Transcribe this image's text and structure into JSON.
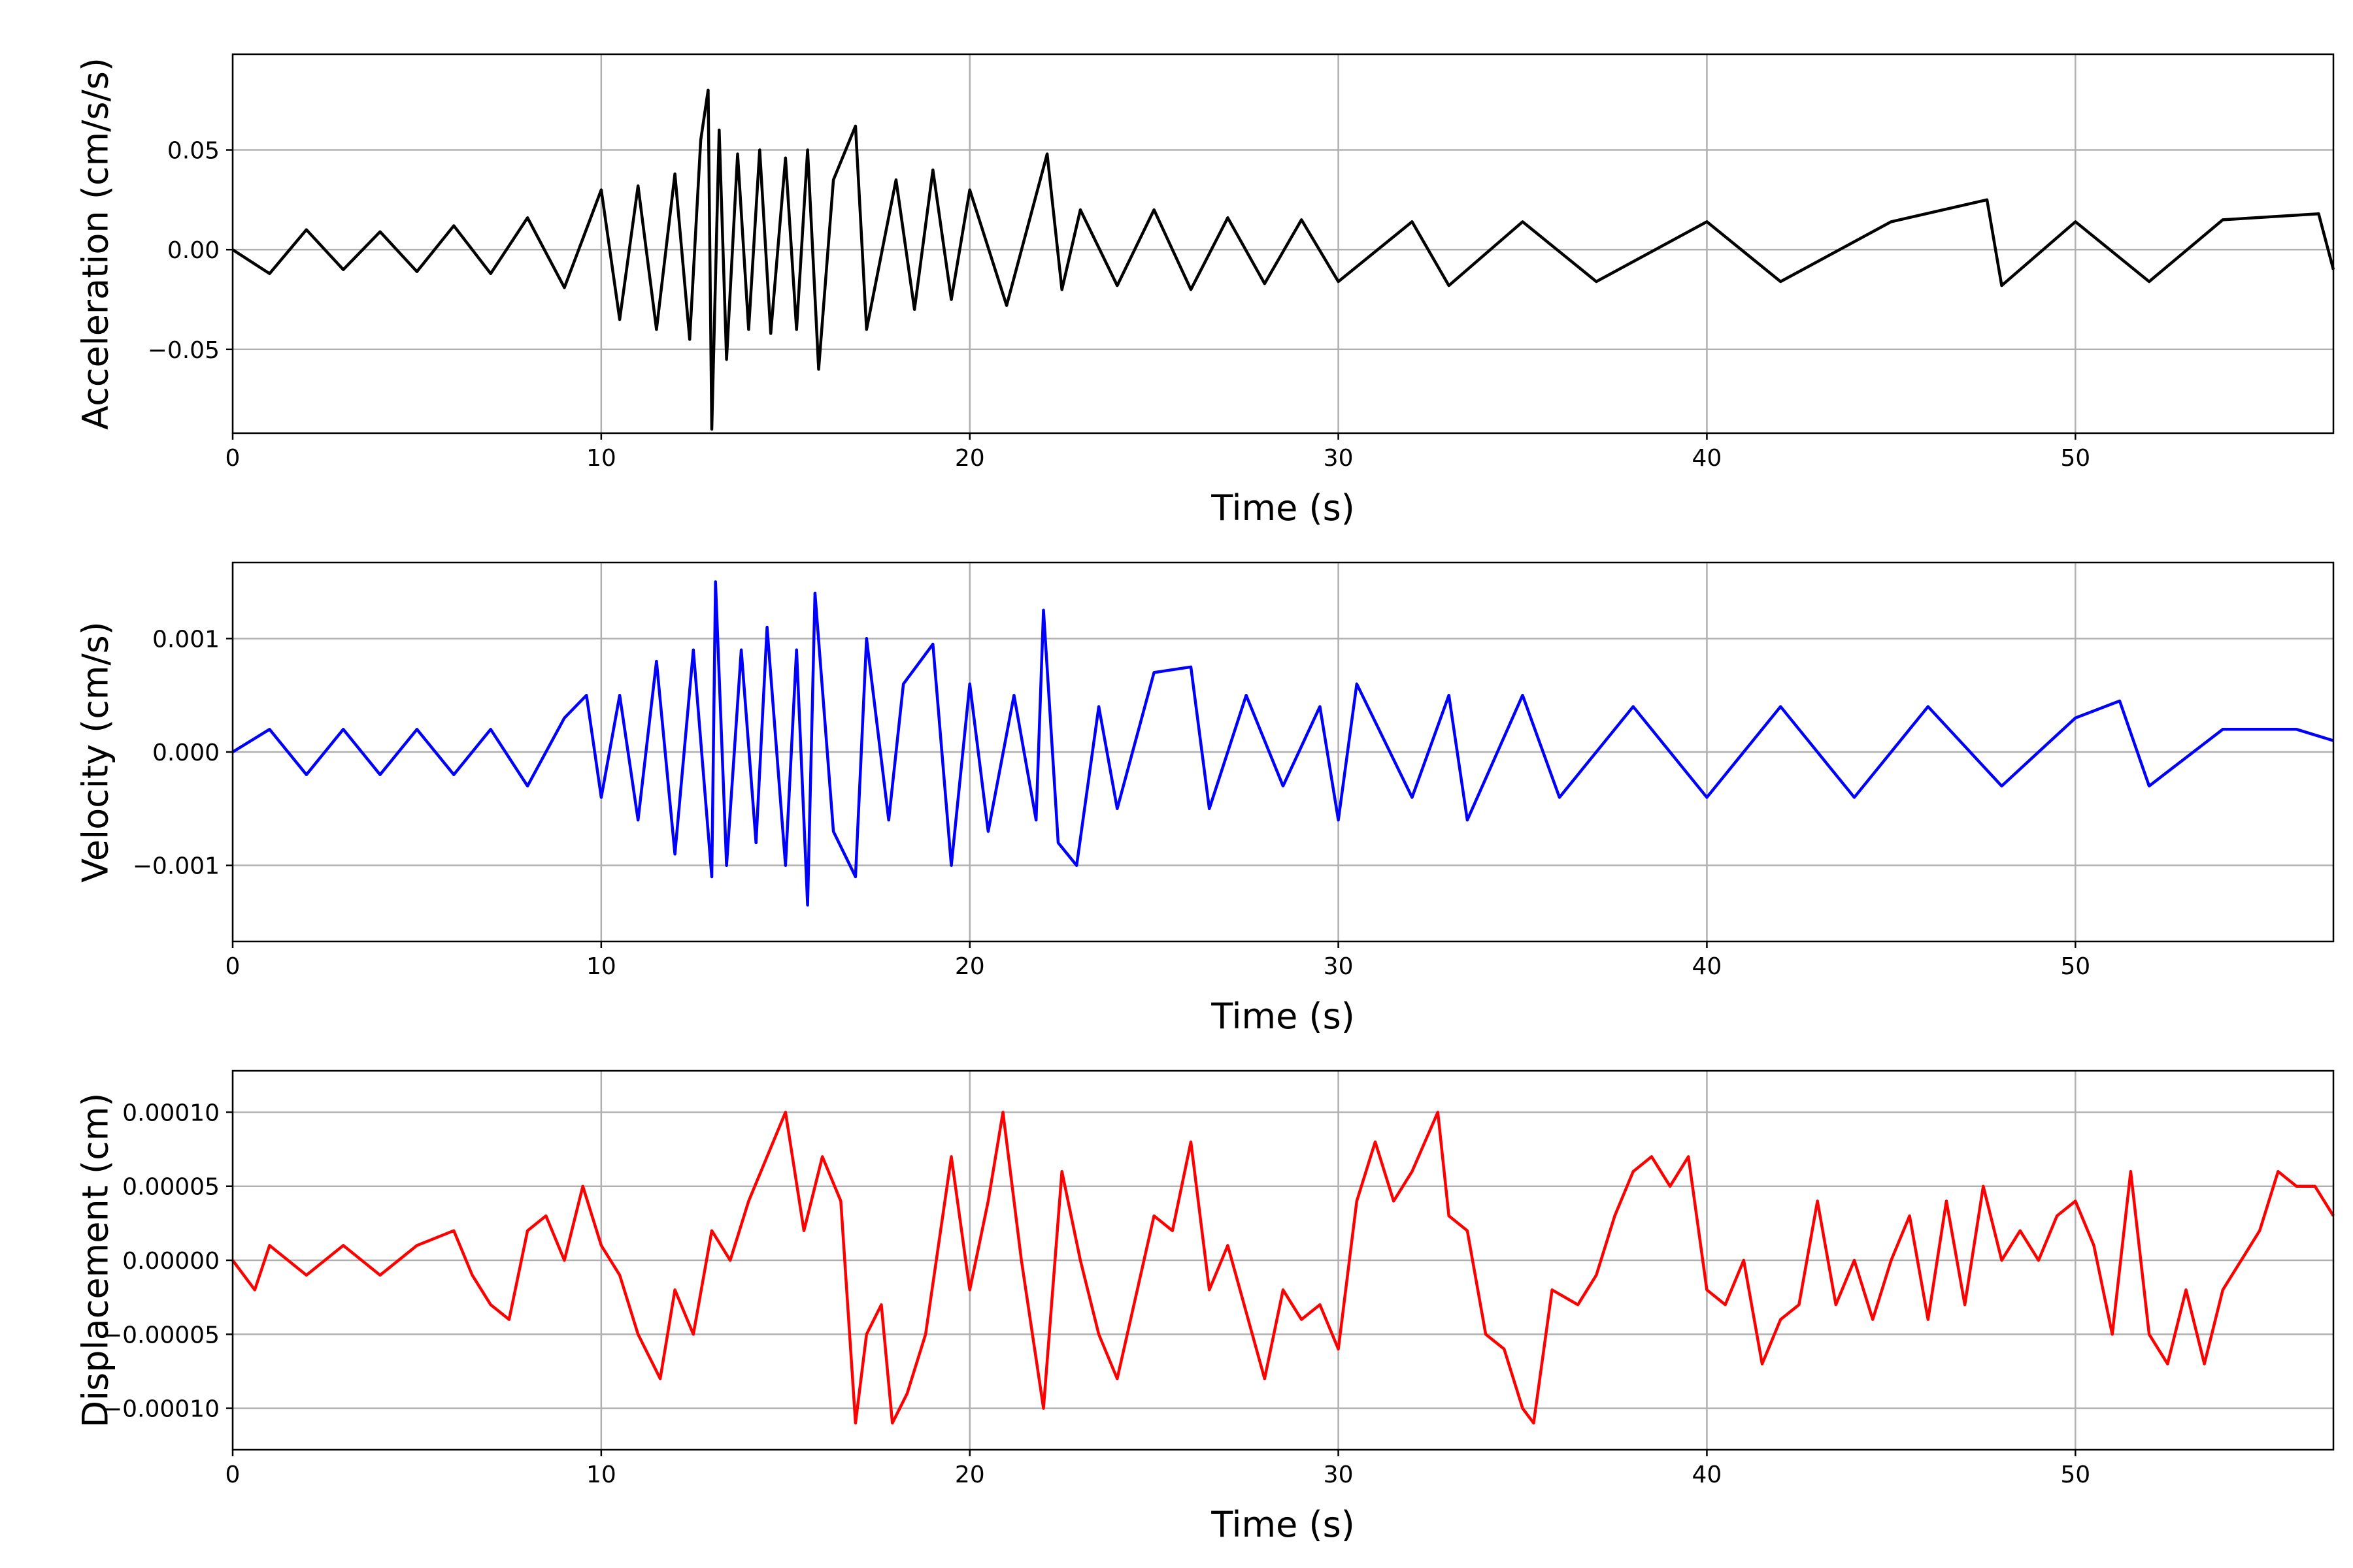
{
  "chart_data": [
    {
      "type": "line",
      "title": "",
      "xlabel": "Time (s)",
      "ylabel": "Acceleration (cm/s/s)",
      "xlim": [
        0,
        57
      ],
      "ylim": [
        -0.092,
        0.098
      ],
      "xticks": [
        0,
        10,
        20,
        30,
        40,
        50
      ],
      "xtick_labels": [
        "0",
        "10",
        "20",
        "30",
        "40",
        "50"
      ],
      "yticks": [
        -0.05,
        0.0,
        0.05
      ],
      "ytick_labels": [
        "−0.05",
        "0.00",
        "0.05"
      ],
      "grid": true,
      "color": "#000000",
      "series": [
        {
          "values": [
            [
              0.0,
              0.0
            ],
            [
              1.0,
              -0.012
            ],
            [
              2.0,
              0.01
            ],
            [
              3.0,
              -0.01
            ],
            [
              4.0,
              0.009
            ],
            [
              5.0,
              -0.011
            ],
            [
              6.0,
              0.012
            ],
            [
              7.0,
              -0.012
            ],
            [
              8.0,
              0.016
            ],
            [
              9.0,
              -0.019
            ],
            [
              10.0,
              0.03
            ],
            [
              10.5,
              -0.035
            ],
            [
              11.0,
              0.032
            ],
            [
              11.5,
              -0.04
            ],
            [
              12.0,
              0.038
            ],
            [
              12.4,
              -0.045
            ],
            [
              12.7,
              0.055
            ],
            [
              12.9,
              0.08
            ],
            [
              13.0,
              -0.09
            ],
            [
              13.2,
              0.06
            ],
            [
              13.4,
              -0.055
            ],
            [
              13.7,
              0.048
            ],
            [
              14.0,
              -0.04
            ],
            [
              14.3,
              0.05
            ],
            [
              14.6,
              -0.042
            ],
            [
              15.0,
              0.046
            ],
            [
              15.3,
              -0.04
            ],
            [
              15.6,
              0.05
            ],
            [
              15.9,
              -0.06
            ],
            [
              16.3,
              0.035
            ],
            [
              16.9,
              0.062
            ],
            [
              17.2,
              -0.04
            ],
            [
              18.0,
              0.035
            ],
            [
              18.5,
              -0.03
            ],
            [
              19.0,
              0.04
            ],
            [
              19.5,
              -0.025
            ],
            [
              20.0,
              0.03
            ],
            [
              21.0,
              -0.028
            ],
            [
              22.1,
              0.048
            ],
            [
              22.5,
              -0.02
            ],
            [
              23.0,
              0.02
            ],
            [
              24.0,
              -0.018
            ],
            [
              25.0,
              0.02
            ],
            [
              26.0,
              -0.02
            ],
            [
              27.0,
              0.016
            ],
            [
              28.0,
              -0.017
            ],
            [
              29.0,
              0.015
            ],
            [
              30.0,
              -0.016
            ],
            [
              32.0,
              0.014
            ],
            [
              33.0,
              -0.018
            ],
            [
              35.0,
              0.014
            ],
            [
              37.0,
              -0.016
            ],
            [
              40.0,
              0.014
            ],
            [
              42.0,
              -0.016
            ],
            [
              45.0,
              0.014
            ],
            [
              47.6,
              0.025
            ],
            [
              48.0,
              -0.018
            ],
            [
              50.0,
              0.014
            ],
            [
              52.0,
              -0.016
            ],
            [
              54.0,
              0.015
            ],
            [
              56.6,
              0.018
            ],
            [
              57.0,
              -0.01
            ]
          ]
        }
      ]
    },
    {
      "type": "line",
      "title": "",
      "xlabel": "Time (s)",
      "ylabel": "Velocity (cm/s)",
      "xlim": [
        0,
        57
      ],
      "ylim": [
        -0.00167,
        0.00167
      ],
      "xticks": [
        0,
        10,
        20,
        30,
        40,
        50
      ],
      "xtick_labels": [
        "0",
        "10",
        "20",
        "30",
        "40",
        "50"
      ],
      "yticks": [
        -0.001,
        0.0,
        0.001
      ],
      "ytick_labels": [
        "−0.001",
        "0.000",
        "0.001"
      ],
      "grid": true,
      "color": "#0000ff",
      "series": [
        {
          "values": [
            [
              0.0,
              0.0
            ],
            [
              1.0,
              0.0002
            ],
            [
              2.0,
              -0.0002
            ],
            [
              3.0,
              0.0002
            ],
            [
              4.0,
              -0.0002
            ],
            [
              5.0,
              0.0002
            ],
            [
              6.0,
              -0.0002
            ],
            [
              7.0,
              0.0002
            ],
            [
              8.0,
              -0.0003
            ],
            [
              9.0,
              0.0003
            ],
            [
              9.6,
              0.0005
            ],
            [
              10.0,
              -0.0004
            ],
            [
              10.5,
              0.0005
            ],
            [
              11.0,
              -0.0006
            ],
            [
              11.5,
              0.0008
            ],
            [
              12.0,
              -0.0009
            ],
            [
              12.5,
              0.0009
            ],
            [
              13.0,
              -0.0011
            ],
            [
              13.1,
              0.0015
            ],
            [
              13.4,
              -0.001
            ],
            [
              13.8,
              0.0009
            ],
            [
              14.2,
              -0.0008
            ],
            [
              14.5,
              0.0011
            ],
            [
              15.0,
              -0.001
            ],
            [
              15.3,
              0.0009
            ],
            [
              15.6,
              -0.00135
            ],
            [
              15.8,
              0.0014
            ],
            [
              16.3,
              -0.0007
            ],
            [
              16.9,
              -0.0011
            ],
            [
              17.2,
              0.001
            ],
            [
              17.8,
              -0.0006
            ],
            [
              18.2,
              0.0006
            ],
            [
              19.0,
              0.00095
            ],
            [
              19.5,
              -0.001
            ],
            [
              20.0,
              0.0006
            ],
            [
              20.5,
              -0.0007
            ],
            [
              21.2,
              0.0005
            ],
            [
              21.8,
              -0.0006
            ],
            [
              22.0,
              0.00125
            ],
            [
              22.4,
              -0.0008
            ],
            [
              22.9,
              -0.001
            ],
            [
              23.5,
              0.0004
            ],
            [
              24.0,
              -0.0005
            ],
            [
              25.0,
              0.0007
            ],
            [
              26.0,
              0.00075
            ],
            [
              26.5,
              -0.0005
            ],
            [
              27.5,
              0.0005
            ],
            [
              28.5,
              -0.0003
            ],
            [
              29.5,
              0.0004
            ],
            [
              30.0,
              -0.0006
            ],
            [
              30.5,
              0.0006
            ],
            [
              32.0,
              -0.0004
            ],
            [
              33.0,
              0.0005
            ],
            [
              33.5,
              -0.0006
            ],
            [
              35.0,
              0.0005
            ],
            [
              36.0,
              -0.0004
            ],
            [
              38.0,
              0.0004
            ],
            [
              40.0,
              -0.0004
            ],
            [
              42.0,
              0.0004
            ],
            [
              44.0,
              -0.0004
            ],
            [
              46.0,
              0.0004
            ],
            [
              48.0,
              -0.0003
            ],
            [
              50.0,
              0.0003
            ],
            [
              51.2,
              0.00045
            ],
            [
              52.0,
              -0.0003
            ],
            [
              54.0,
              0.0002
            ],
            [
              56.0,
              0.0002
            ],
            [
              57.0,
              0.0001
            ]
          ]
        }
      ]
    },
    {
      "type": "line",
      "title": "",
      "xlabel": "Time (s)",
      "ylabel": "Displacement (cm)",
      "xlim": [
        0,
        57
      ],
      "ylim": [
        -0.000128,
        0.000128
      ],
      "xticks": [
        0,
        10,
        20,
        30,
        40,
        50
      ],
      "xtick_labels": [
        "0",
        "10",
        "20",
        "30",
        "40",
        "50"
      ],
      "yticks": [
        -0.0001,
        -5e-05,
        0.0,
        5e-05,
        0.0001
      ],
      "ytick_labels": [
        "−0.00010",
        "−0.00005",
        "0.00000",
        "0.00005",
        "0.00010"
      ],
      "grid": true,
      "color": "#ff0000",
      "series": [
        {
          "values": [
            [
              0.0,
              0.0
            ],
            [
              0.6,
              -2e-05
            ],
            [
              1.0,
              1e-05
            ],
            [
              2.0,
              -1e-05
            ],
            [
              3.0,
              1e-05
            ],
            [
              4.0,
              -1e-05
            ],
            [
              5.0,
              1e-05
            ],
            [
              6.0,
              2e-05
            ],
            [
              6.5,
              -1e-05
            ],
            [
              7.0,
              -3e-05
            ],
            [
              7.5,
              -4e-05
            ],
            [
              8.0,
              2e-05
            ],
            [
              8.5,
              3e-05
            ],
            [
              9.0,
              0.0
            ],
            [
              9.5,
              5e-05
            ],
            [
              10.0,
              1e-05
            ],
            [
              10.5,
              -1e-05
            ],
            [
              11.0,
              -5e-05
            ],
            [
              11.6,
              -8e-05
            ],
            [
              12.0,
              -2e-05
            ],
            [
              12.5,
              -5e-05
            ],
            [
              13.0,
              2e-05
            ],
            [
              13.5,
              0.0
            ],
            [
              14.0,
              4e-05
            ],
            [
              14.5,
              7e-05
            ],
            [
              15.0,
              0.0001
            ],
            [
              15.5,
              2e-05
            ],
            [
              16.0,
              7e-05
            ],
            [
              16.5,
              4e-05
            ],
            [
              16.9,
              -0.00011
            ],
            [
              17.2,
              -5e-05
            ],
            [
              17.6,
              -3e-05
            ],
            [
              17.9,
              -0.00011
            ],
            [
              18.3,
              -9e-05
            ],
            [
              18.8,
              -5e-05
            ],
            [
              19.5,
              7e-05
            ],
            [
              20.0,
              -2e-05
            ],
            [
              20.5,
              4e-05
            ],
            [
              20.9,
              0.0001
            ],
            [
              21.4,
              0.0
            ],
            [
              22.0,
              -0.0001
            ],
            [
              22.5,
              6e-05
            ],
            [
              23.0,
              0.0
            ],
            [
              23.5,
              -5e-05
            ],
            [
              24.0,
              -8e-05
            ],
            [
              25.0,
              3e-05
            ],
            [
              25.5,
              2e-05
            ],
            [
              26.0,
              8e-05
            ],
            [
              26.5,
              -2e-05
            ],
            [
              27.0,
              1e-05
            ],
            [
              28.0,
              -8e-05
            ],
            [
              28.5,
              -2e-05
            ],
            [
              29.0,
              -4e-05
            ],
            [
              29.5,
              -3e-05
            ],
            [
              30.0,
              -6e-05
            ],
            [
              30.5,
              4e-05
            ],
            [
              31.0,
              8e-05
            ],
            [
              31.5,
              4e-05
            ],
            [
              32.0,
              6e-05
            ],
            [
              32.7,
              0.0001
            ],
            [
              33.0,
              3e-05
            ],
            [
              33.5,
              2e-05
            ],
            [
              34.0,
              -5e-05
            ],
            [
              34.5,
              -6e-05
            ],
            [
              35.0,
              -0.0001
            ],
            [
              35.3,
              -0.00011
            ],
            [
              35.8,
              -2e-05
            ],
            [
              36.5,
              -3e-05
            ],
            [
              37.0,
              -1e-05
            ],
            [
              37.5,
              3e-05
            ],
            [
              38.0,
              6e-05
            ],
            [
              38.5,
              7e-05
            ],
            [
              39.0,
              5e-05
            ],
            [
              39.5,
              7e-05
            ],
            [
              40.0,
              -2e-05
            ],
            [
              40.5,
              -3e-05
            ],
            [
              41.0,
              0.0
            ],
            [
              41.5,
              -7e-05
            ],
            [
              42.0,
              -4e-05
            ],
            [
              42.5,
              -3e-05
            ],
            [
              43.0,
              4e-05
            ],
            [
              43.5,
              -3e-05
            ],
            [
              44.0,
              0.0
            ],
            [
              44.5,
              -4e-05
            ],
            [
              45.0,
              0.0
            ],
            [
              45.5,
              3e-05
            ],
            [
              46.0,
              -4e-05
            ],
            [
              46.5,
              4e-05
            ],
            [
              47.0,
              -3e-05
            ],
            [
              47.5,
              5e-05
            ],
            [
              48.0,
              0.0
            ],
            [
              48.5,
              2e-05
            ],
            [
              49.0,
              0.0
            ],
            [
              49.5,
              3e-05
            ],
            [
              50.0,
              4e-05
            ],
            [
              50.5,
              1e-05
            ],
            [
              51.0,
              -5e-05
            ],
            [
              51.5,
              6e-05
            ],
            [
              52.0,
              -5e-05
            ],
            [
              52.5,
              -7e-05
            ],
            [
              53.0,
              -2e-05
            ],
            [
              53.5,
              -7e-05
            ],
            [
              54.0,
              -2e-05
            ],
            [
              54.5,
              0.0
            ],
            [
              55.0,
              2e-05
            ],
            [
              55.5,
              6e-05
            ],
            [
              56.0,
              5e-05
            ],
            [
              56.5,
              5e-05
            ],
            [
              57.0,
              3e-05
            ]
          ]
        }
      ]
    }
  ]
}
